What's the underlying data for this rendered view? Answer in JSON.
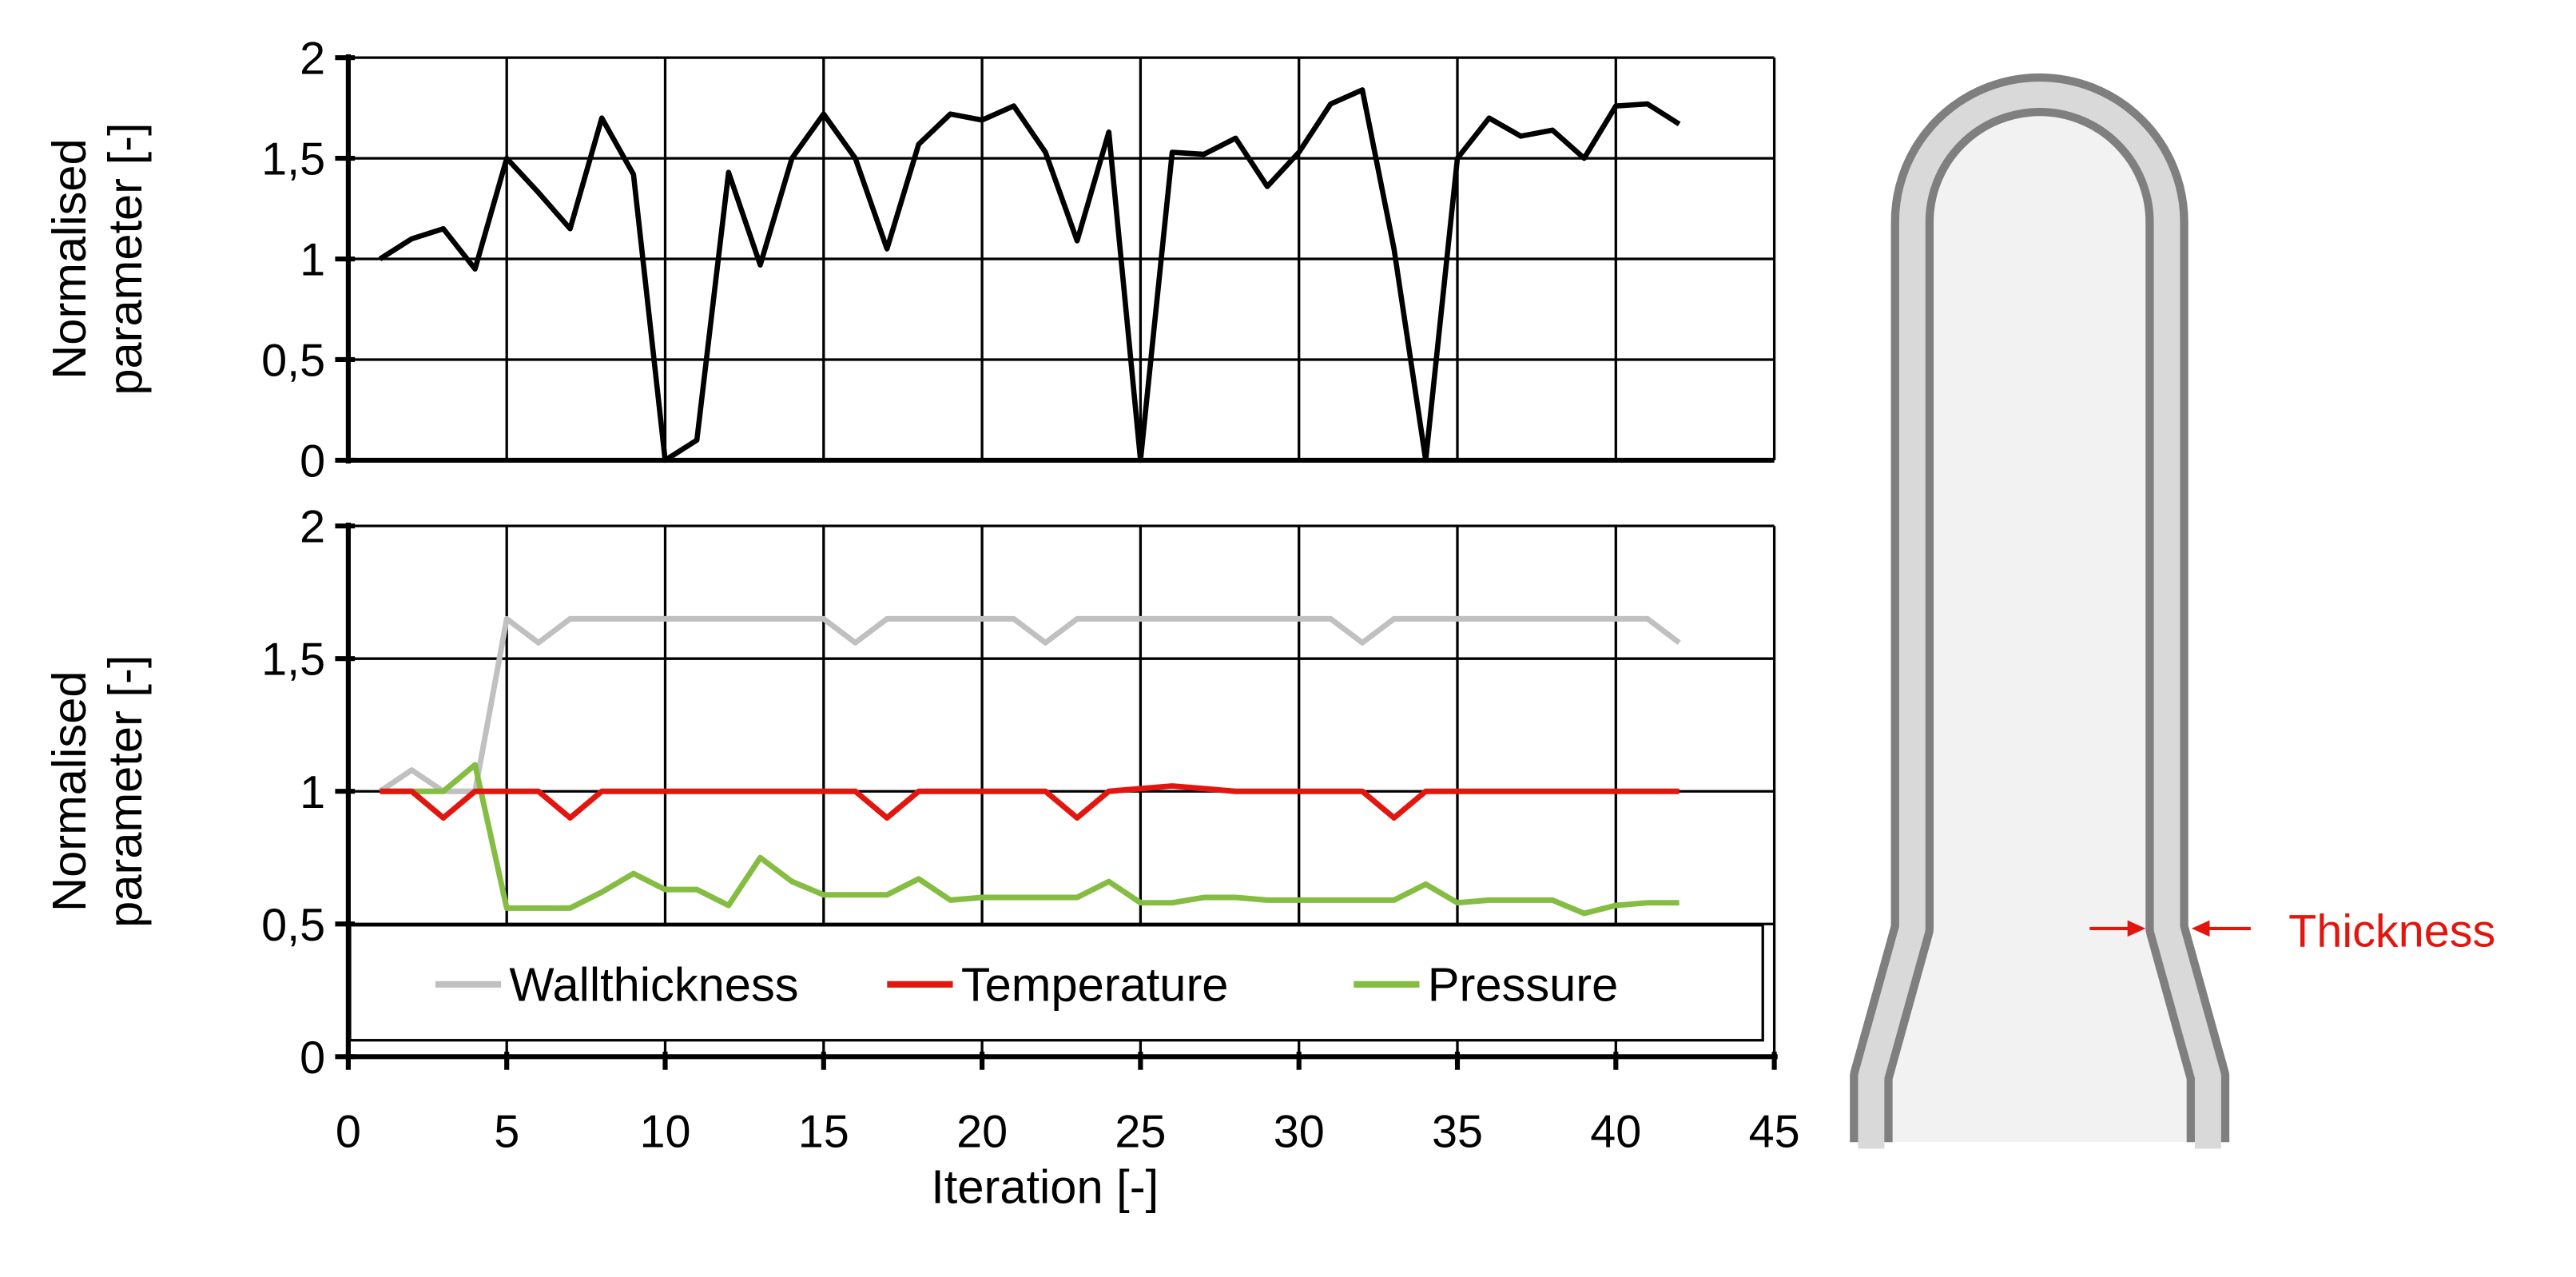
{
  "chart_data": [
    {
      "type": "line",
      "ylabel_lines": [
        "Normalised",
        "parameter  [-]"
      ],
      "xlim": [
        0,
        45
      ],
      "ylim": [
        0,
        2
      ],
      "yticks": [
        "0",
        "0,5",
        "1",
        "1,5",
        "2"
      ],
      "grid": true,
      "x": [
        1,
        2,
        3,
        4,
        5,
        6,
        7,
        8,
        9,
        10,
        11,
        12,
        13,
        14,
        15,
        16,
        17,
        18,
        19,
        20,
        21,
        22,
        23,
        24,
        25,
        26,
        27,
        28,
        29,
        30,
        31,
        32,
        33,
        34,
        35,
        36,
        37,
        38,
        39,
        40,
        41,
        42
      ],
      "series": [
        {
          "color": "#000000",
          "values": [
            1.0,
            1.1,
            1.15,
            0.95,
            1.5,
            1.33,
            1.15,
            1.7,
            1.42,
            0.0,
            0.1,
            1.43,
            0.97,
            1.5,
            1.72,
            1.5,
            1.05,
            1.57,
            1.72,
            1.69,
            1.76,
            1.53,
            1.09,
            1.63,
            0.0,
            1.53,
            1.52,
            1.6,
            1.36,
            1.53,
            1.77,
            1.84,
            1.05,
            0.0,
            1.5,
            1.7,
            1.61,
            1.64,
            1.5,
            1.76,
            1.77,
            1.67
          ]
        }
      ]
    },
    {
      "type": "line",
      "ylabel_lines": [
        "Normalised",
        "parameter  [-]"
      ],
      "xlabel": "Iteration   [-]",
      "xlim": [
        0,
        45
      ],
      "ylim": [
        0,
        2
      ],
      "xticks": [
        "0",
        "5",
        "10",
        "15",
        "20",
        "25",
        "30",
        "35",
        "40",
        "45"
      ],
      "yticks": [
        "0",
        "0,5",
        "1",
        "1,5",
        "2"
      ],
      "grid": true,
      "legend_position": "bottom",
      "x": [
        1,
        2,
        3,
        4,
        5,
        6,
        7,
        8,
        9,
        10,
        11,
        12,
        13,
        14,
        15,
        16,
        17,
        18,
        19,
        20,
        21,
        22,
        23,
        24,
        25,
        26,
        27,
        28,
        29,
        30,
        31,
        32,
        33,
        34,
        35,
        36,
        37,
        38,
        39,
        40,
        41,
        42
      ],
      "series": [
        {
          "name": "Wallthickness",
          "color": "#c0c0c0",
          "values": [
            1.0,
            1.08,
            1.0,
            1.0,
            1.65,
            1.56,
            1.65,
            1.65,
            1.65,
            1.65,
            1.65,
            1.65,
            1.65,
            1.65,
            1.65,
            1.56,
            1.65,
            1.65,
            1.65,
            1.65,
            1.65,
            1.56,
            1.65,
            1.65,
            1.65,
            1.65,
            1.65,
            1.65,
            1.65,
            1.65,
            1.65,
            1.56,
            1.65,
            1.65,
            1.65,
            1.65,
            1.65,
            1.65,
            1.65,
            1.65,
            1.65,
            1.56
          ]
        },
        {
          "name": "Temperature",
          "color": "#e3160f",
          "values": [
            1.0,
            1.0,
            0.9,
            1.0,
            1.0,
            1.0,
            0.9,
            1.0,
            1.0,
            1.0,
            1.0,
            1.0,
            1.0,
            1.0,
            1.0,
            1.0,
            0.9,
            1.0,
            1.0,
            1.0,
            1.0,
            1.0,
            0.9,
            1.0,
            1.01,
            1.02,
            1.01,
            1.0,
            1.0,
            1.0,
            1.0,
            1.0,
            0.9,
            1.0,
            1.0,
            1.0,
            1.0,
            1.0,
            1.0,
            1.0,
            1.0,
            1.0
          ]
        },
        {
          "name": "Pressure",
          "color": "#84bd41",
          "values": [
            1.0,
            1.0,
            1.0,
            1.1,
            0.56,
            0.56,
            0.56,
            0.62,
            0.69,
            0.63,
            0.63,
            0.57,
            0.75,
            0.66,
            0.61,
            0.61,
            0.61,
            0.67,
            0.59,
            0.6,
            0.6,
            0.6,
            0.6,
            0.66,
            0.58,
            0.58,
            0.6,
            0.6,
            0.59,
            0.59,
            0.59,
            0.59,
            0.59,
            0.65,
            0.58,
            0.59,
            0.59,
            0.59,
            0.54,
            0.57,
            0.58,
            0.58
          ]
        }
      ]
    }
  ],
  "diagram": {
    "annotation": "Thickness",
    "annotation_color": "#e3160f",
    "wall_color": "#d9d9d9",
    "outline_color": "#7f7f7f",
    "interior_color": "#f2f2f2"
  }
}
